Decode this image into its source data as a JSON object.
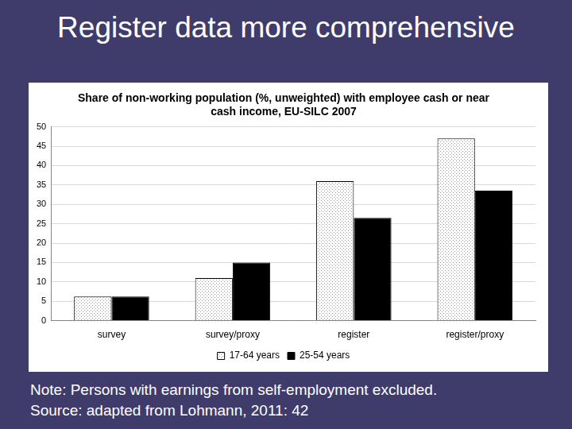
{
  "slide": {
    "title": "Register data more comprehensive",
    "notes": [
      "Note: Persons with earnings from self-employment excluded.",
      "Source: adapted from Lohmann, 2011: 42"
    ]
  },
  "chart_data": {
    "type": "bar",
    "title": "Share of non-working population (%, unweighted) with employee cash or near cash income, EU-SILC 2007",
    "categories": [
      "survey",
      "survey/proxy",
      "register",
      "register/proxy"
    ],
    "series": [
      {
        "name": "17-64 years",
        "color": "#ffffff",
        "values": [
          6.2,
          11,
          36,
          47
        ]
      },
      {
        "name": "25-54 years",
        "color": "#000000",
        "values": [
          6.2,
          15,
          26.5,
          33.5
        ]
      }
    ],
    "ylim": [
      0,
      50
    ],
    "yticks": [
      0,
      5,
      10,
      15,
      20,
      25,
      30,
      35,
      40,
      45,
      50
    ],
    "grid": true,
    "legend": "bottom"
  }
}
